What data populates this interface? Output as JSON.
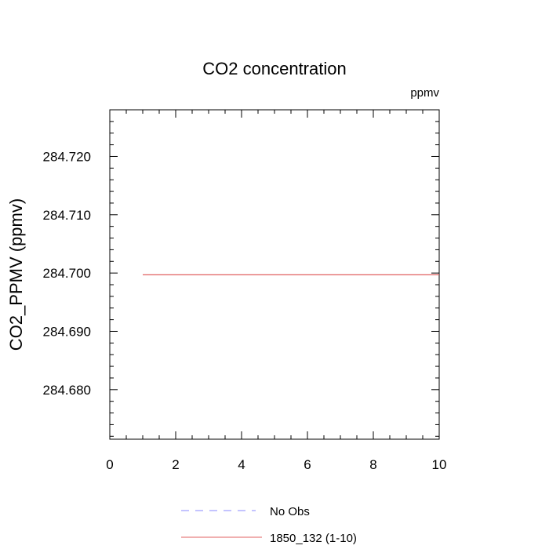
{
  "chart_data": {
    "type": "line",
    "title": "CO2 concentration",
    "units_label": "ppmv",
    "xlabel": "",
    "ylabel": "CO2_PPMV  (ppmv)",
    "xlim": [
      0,
      10
    ],
    "ylim": [
      284.6715,
      284.728
    ],
    "x_ticks": [
      0,
      2,
      4,
      6,
      8,
      10
    ],
    "x_tick_labels": [
      "0",
      "2",
      "4",
      "6",
      "8",
      "10"
    ],
    "y_ticks": [
      284.68,
      284.69,
      284.7,
      284.71,
      284.72
    ],
    "y_tick_labels": [
      "284.680",
      "284.690",
      "284.700",
      "284.710",
      "284.720"
    ],
    "grid": false,
    "legend_position": "bottom",
    "series": [
      {
        "name": "No Obs",
        "color": "#8888ff",
        "dash": "dashed",
        "x": [],
        "y": []
      },
      {
        "name": "1850_132 (1-10)",
        "color": "#e06060",
        "dash": "solid",
        "x": [
          1,
          2,
          3,
          4,
          5,
          6,
          7,
          8,
          9,
          10
        ],
        "y": [
          284.6997,
          284.6997,
          284.6997,
          284.6997,
          284.6997,
          284.6997,
          284.6997,
          284.6997,
          284.6997,
          284.6997
        ]
      }
    ]
  }
}
